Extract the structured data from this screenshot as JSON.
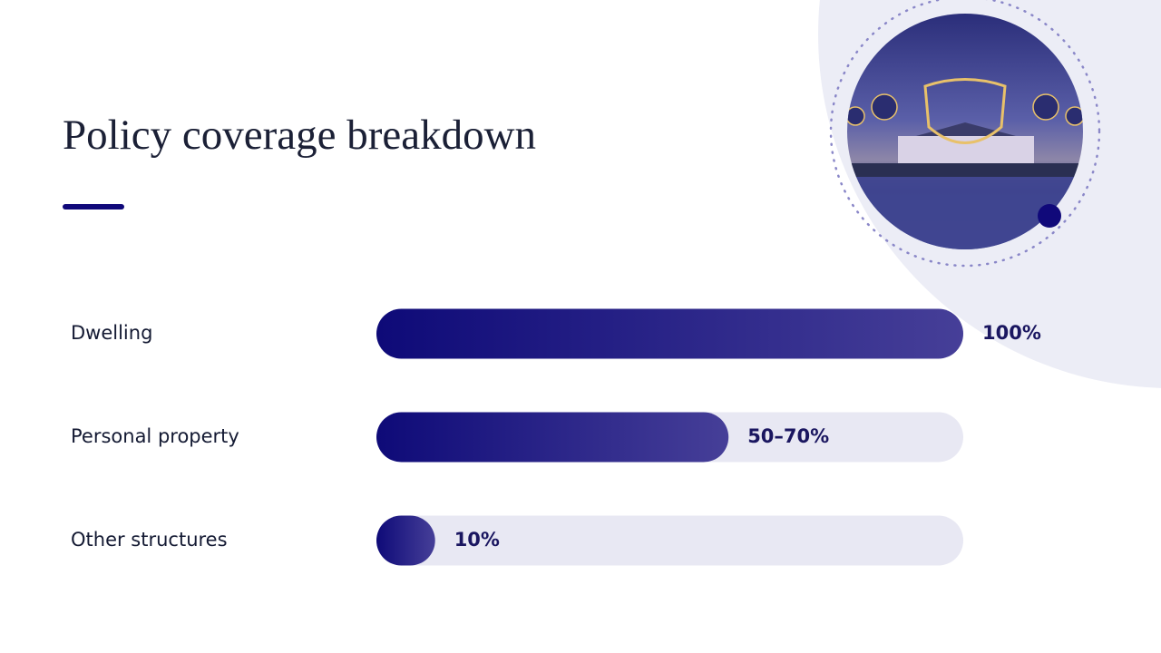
{
  "chart_data": {
    "type": "bar",
    "orientation": "horizontal",
    "title": "Policy coverage breakdown",
    "categories": [
      "Dwelling",
      "Personal property",
      "Other structures"
    ],
    "values": [
      100,
      60,
      10
    ],
    "value_labels": [
      "100%",
      "50–70%",
      "10%"
    ],
    "xlim": [
      0,
      100
    ],
    "color": [
      "#0e0a78",
      "#463f98"
    ],
    "track_color": "#e8e8f3"
  }
}
